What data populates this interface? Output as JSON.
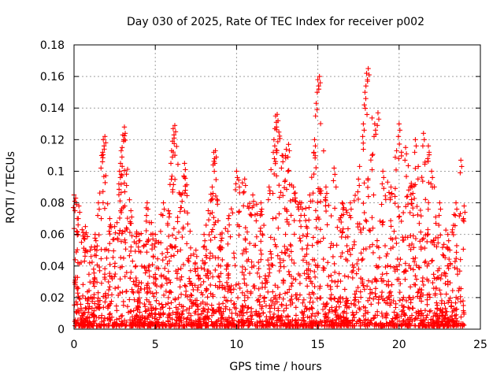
{
  "chart_data": {
    "type": "scatter",
    "title": "Day 030 of 2025, Rate Of TEC Index for receiver p002",
    "xlabel": "GPS time / hours",
    "ylabel": "ROTI / TECUs",
    "xlim": [
      0,
      25
    ],
    "ylim": [
      0,
      0.18
    ],
    "xticks": [
      0,
      5,
      10,
      15,
      20,
      25
    ],
    "xtick_labels": [
      "0",
      "5",
      "10",
      "15",
      "20",
      "25"
    ],
    "yticks": [
      0,
      0.02,
      0.04,
      0.06,
      0.08,
      0.1,
      0.12,
      0.14,
      0.16,
      0.18
    ],
    "ytick_labels": [
      "0",
      "0.02",
      "0.04",
      "0.06",
      "0.08",
      "0.1",
      "0.12",
      "0.14",
      "0.16",
      "0.18"
    ],
    "grid": true,
    "marker": "+",
    "marker_color": "#ff0000",
    "data_extent_x": [
      0,
      24
    ],
    "series": [
      {
        "name": "ROTI",
        "description_note": "dense cloud of points; representative envelope peaks listed below",
        "points": [
          [
            0.0,
            0.085
          ],
          [
            0.1,
            0.083
          ],
          [
            0.2,
            0.07
          ],
          [
            0.3,
            0.078
          ],
          [
            0.5,
            0.063
          ],
          [
            0.7,
            0.065
          ],
          [
            1.0,
            0.05
          ],
          [
            1.3,
            0.06
          ],
          [
            1.5,
            0.08
          ],
          [
            1.7,
            0.11
          ],
          [
            1.8,
            0.12
          ],
          [
            1.9,
            0.122
          ],
          [
            2.2,
            0.07
          ],
          [
            2.5,
            0.065
          ],
          [
            2.8,
            0.1
          ],
          [
            2.9,
            0.113
          ],
          [
            3.0,
            0.123
          ],
          [
            3.1,
            0.128
          ],
          [
            3.5,
            0.075
          ],
          [
            4.0,
            0.06
          ],
          [
            4.5,
            0.08
          ],
          [
            5.0,
            0.06
          ],
          [
            5.5,
            0.08
          ],
          [
            5.8,
            0.075
          ],
          [
            6.0,
            0.113
          ],
          [
            6.1,
            0.127
          ],
          [
            6.2,
            0.129
          ],
          [
            6.6,
            0.085
          ],
          [
            6.8,
            0.105
          ],
          [
            7.5,
            0.05
          ],
          [
            8.0,
            0.06
          ],
          [
            8.5,
            0.09
          ],
          [
            8.6,
            0.112
          ],
          [
            8.7,
            0.113
          ],
          [
            9.0,
            0.06
          ],
          [
            9.5,
            0.07
          ],
          [
            10.0,
            0.1
          ],
          [
            10.5,
            0.095
          ],
          [
            11.0,
            0.085
          ],
          [
            11.5,
            0.08
          ],
          [
            12.0,
            0.09
          ],
          [
            12.3,
            0.12
          ],
          [
            12.4,
            0.135
          ],
          [
            12.5,
            0.136
          ],
          [
            12.8,
            0.11
          ],
          [
            13.2,
            0.117
          ],
          [
            13.5,
            0.09
          ],
          [
            14.0,
            0.08
          ],
          [
            14.5,
            0.085
          ],
          [
            14.8,
            0.12
          ],
          [
            14.9,
            0.143
          ],
          [
            15.0,
            0.158
          ],
          [
            15.1,
            0.16
          ],
          [
            15.5,
            0.09
          ],
          [
            16.0,
            0.102
          ],
          [
            16.5,
            0.08
          ],
          [
            17.0,
            0.08
          ],
          [
            17.5,
            0.095
          ],
          [
            17.8,
            0.13
          ],
          [
            17.9,
            0.15
          ],
          [
            18.0,
            0.162
          ],
          [
            18.1,
            0.165
          ],
          [
            18.5,
            0.13
          ],
          [
            18.7,
            0.137
          ],
          [
            19.0,
            0.1
          ],
          [
            19.5,
            0.09
          ],
          [
            20.0,
            0.13
          ],
          [
            20.4,
            0.115
          ],
          [
            20.8,
            0.09
          ],
          [
            21.0,
            0.12
          ],
          [
            21.5,
            0.124
          ],
          [
            21.8,
            0.116
          ],
          [
            22.0,
            0.1
          ],
          [
            22.5,
            0.08
          ],
          [
            23.0,
            0.06
          ],
          [
            23.5,
            0.08
          ],
          [
            23.8,
            0.107
          ],
          [
            24.0,
            0.078
          ]
        ]
      }
    ]
  }
}
